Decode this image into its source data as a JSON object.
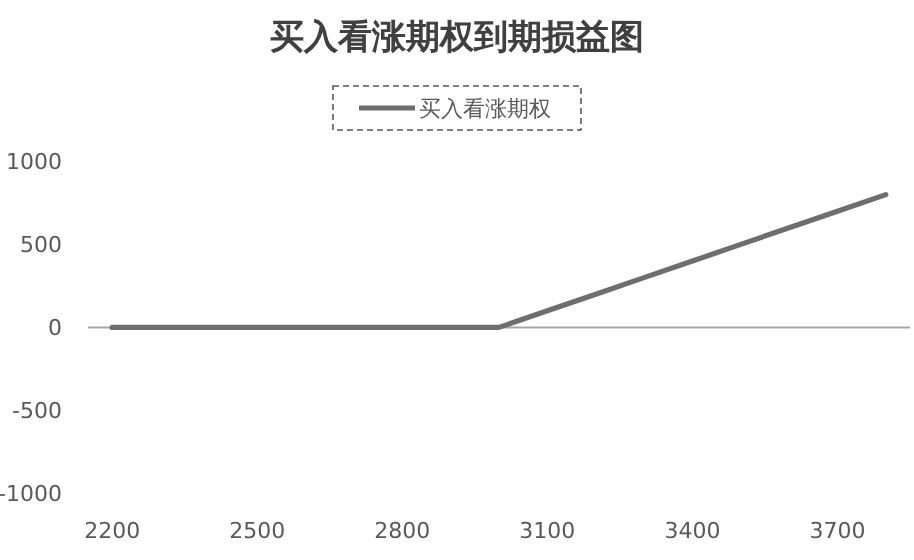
{
  "chart_data": {
    "type": "line",
    "title": "买入看涨期权到期损益图",
    "x": [
      2200,
      2300,
      2400,
      2500,
      2600,
      2700,
      2800,
      2900,
      3000,
      3100,
      3200,
      3300,
      3400,
      3500,
      3600,
      3700,
      3800
    ],
    "series": [
      {
        "name": "买入看涨期权",
        "color": "#6e6e6e",
        "values": [
          0,
          0,
          0,
          0,
          0,
          0,
          0,
          0,
          0,
          100,
          200,
          300,
          400,
          500,
          600,
          700,
          800
        ]
      }
    ],
    "xlim": [
      2150,
      3850
    ],
    "xticks": [
      2200,
      2500,
      2800,
      3100,
      3400,
      3700
    ],
    "ylim": [
      -1000,
      1000
    ],
    "yticks": [
      -1000,
      -500,
      0,
      500,
      1000
    ],
    "legend": "top",
    "line_style": "solid"
  }
}
